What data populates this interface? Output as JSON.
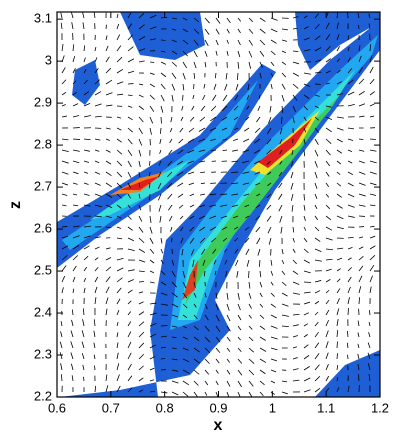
{
  "chart_data": {
    "type": "contour",
    "xlabel": "x",
    "ylabel": "z",
    "xlim": [
      0.6,
      1.2
    ],
    "xticks": [
      0.6,
      0.7,
      0.8,
      0.9,
      1,
      1.1,
      1.2
    ],
    "ylim": [
      2.2,
      3.117
    ],
    "yticks": [
      2.2,
      2.3,
      2.4,
      2.5,
      2.6,
      2.7,
      2.8,
      2.9,
      3,
      3.1
    ]
  }
}
